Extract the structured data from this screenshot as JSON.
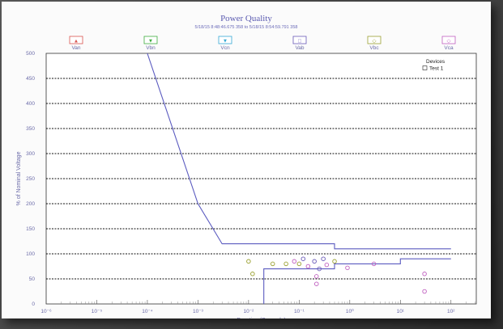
{
  "chart_data": {
    "type": "scatter",
    "title": "Power Quality",
    "subtitle": "5/18/15 8:48:46.675 358 to 5/18/15 8:54:59.791 358",
    "xlabel": "Duration (Seconds)",
    "ylabel": "% of Nominal Voltage",
    "x_scale": "log",
    "x_ticks": [
      "10⁻⁶",
      "10⁻⁵",
      "10⁻⁴",
      "10⁻³",
      "10⁻²",
      "10⁻¹",
      "10⁰",
      "10¹",
      "10²"
    ],
    "y_ticks": [
      "0",
      "50",
      "100",
      "150",
      "200",
      "250",
      "300",
      "350",
      "400",
      "450",
      "500"
    ],
    "ylim": [
      0,
      500
    ],
    "grid": true,
    "legend": [
      {
        "label": "Van",
        "color": "#d9534f",
        "marker": "▲"
      },
      {
        "label": "Vbn",
        "color": "#3fae3f",
        "marker": "▼"
      },
      {
        "label": "Vcn",
        "color": "#35a9d4",
        "marker": "▼"
      },
      {
        "label": "Vab",
        "color": "#6a5ab8",
        "marker": "□"
      },
      {
        "label": "Vbc",
        "color": "#9aa030",
        "marker": "◇"
      },
      {
        "label": "Vca",
        "color": "#c060c0",
        "marker": "◇"
      }
    ],
    "devices_title": "Devices",
    "devices_item": "Test 1",
    "envelope_upper": [
      {
        "x": 0.0001,
        "y": 500
      },
      {
        "x": 0.001,
        "y": 200
      },
      {
        "x": 0.003,
        "y": 120
      },
      {
        "x": 0.5,
        "y": 120
      },
      {
        "x": 0.5,
        "y": 110
      },
      {
        "x": 10,
        "y": 110
      },
      {
        "x": 10,
        "y": 110
      },
      {
        "x": 100,
        "y": 110
      }
    ],
    "envelope_lower": [
      {
        "x": 0.02,
        "y": 0
      },
      {
        "x": 0.02,
        "y": 70
      },
      {
        "x": 0.5,
        "y": 70
      },
      {
        "x": 0.5,
        "y": 80
      },
      {
        "x": 10,
        "y": 80
      },
      {
        "x": 10,
        "y": 90
      },
      {
        "x": 100,
        "y": 90
      }
    ],
    "points": [
      {
        "x": 0.01,
        "y": 85,
        "color": "#9aa030"
      },
      {
        "x": 0.012,
        "y": 60,
        "color": "#9aa030"
      },
      {
        "x": 0.03,
        "y": 80,
        "color": "#9aa030"
      },
      {
        "x": 0.055,
        "y": 80,
        "color": "#9aa030"
      },
      {
        "x": 0.08,
        "y": 85,
        "color": "#c060c0"
      },
      {
        "x": 0.1,
        "y": 80,
        "color": "#9aa030"
      },
      {
        "x": 0.12,
        "y": 90,
        "color": "#6a5ab8"
      },
      {
        "x": 0.15,
        "y": 75,
        "color": "#c060c0"
      },
      {
        "x": 0.2,
        "y": 85,
        "color": "#6a5ab8"
      },
      {
        "x": 0.22,
        "y": 40,
        "color": "#c060c0"
      },
      {
        "x": 0.22,
        "y": 55,
        "color": "#c060c0"
      },
      {
        "x": 0.25,
        "y": 70,
        "color": "#6a5ab8"
      },
      {
        "x": 0.3,
        "y": 90,
        "color": "#6a5ab8"
      },
      {
        "x": 0.35,
        "y": 78,
        "color": "#c060c0"
      },
      {
        "x": 0.5,
        "y": 85,
        "color": "#9aa030"
      },
      {
        "x": 0.9,
        "y": 72,
        "color": "#c060c0"
      },
      {
        "x": 3,
        "y": 80,
        "color": "#c060c0"
      },
      {
        "x": 30,
        "y": 60,
        "color": "#c060c0"
      },
      {
        "x": 30,
        "y": 25,
        "color": "#c060c0"
      }
    ]
  }
}
